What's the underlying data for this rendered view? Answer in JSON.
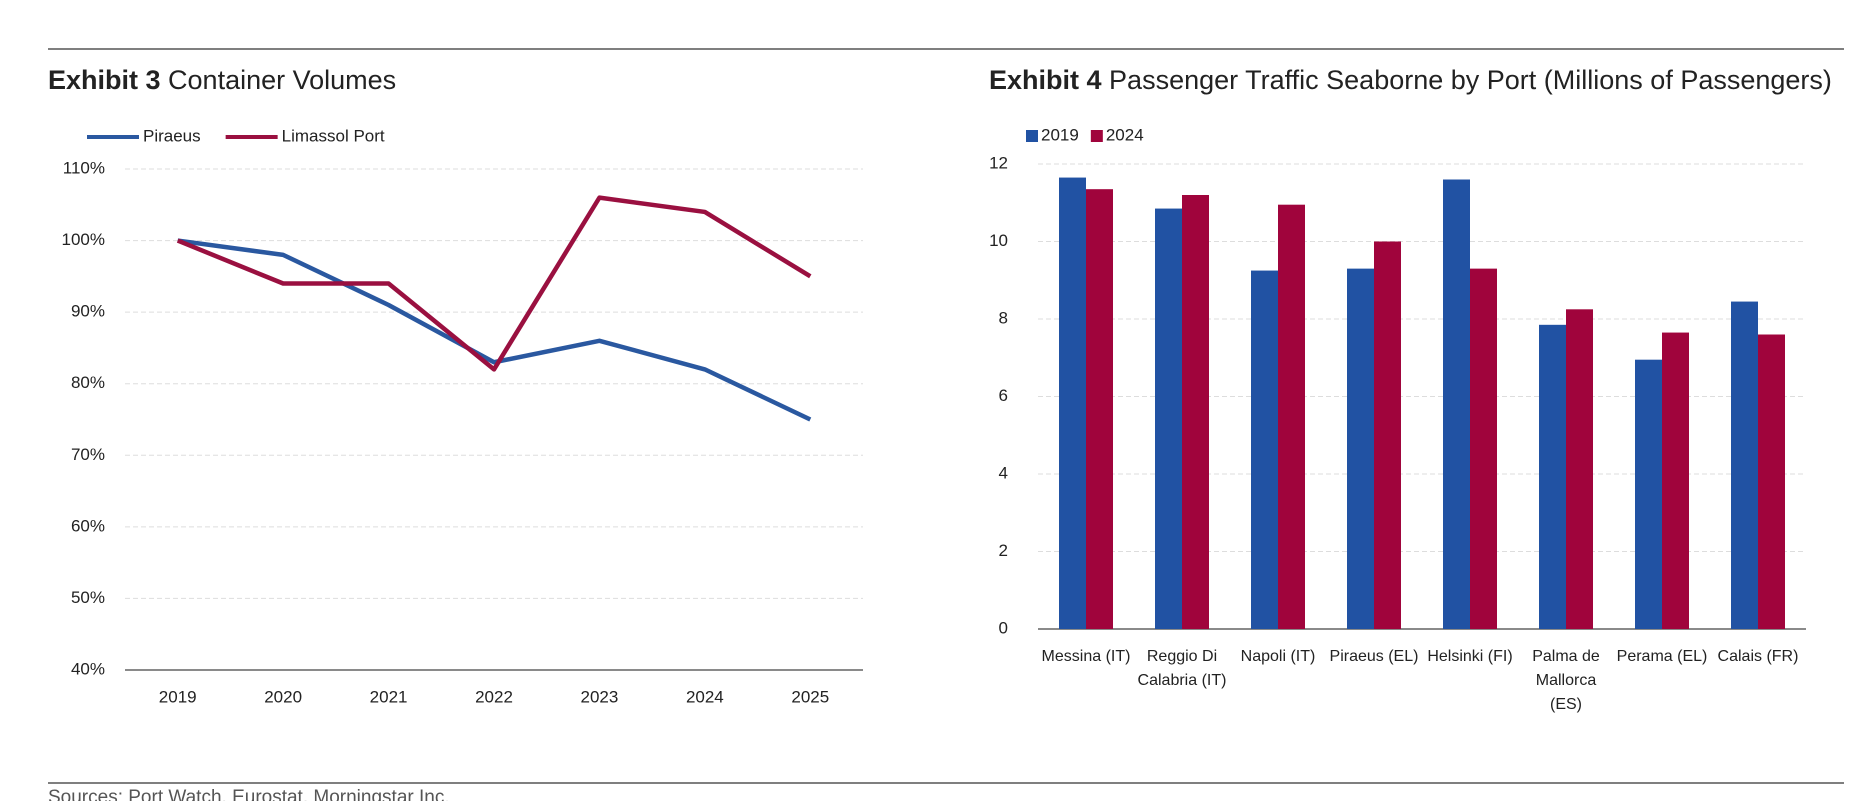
{
  "chart_data": [
    {
      "type": "line",
      "exhibit": "Exhibit 3",
      "title": "Container Volumes",
      "categories": [
        "2019",
        "2020",
        "2021",
        "2022",
        "2023",
        "2024",
        "2025"
      ],
      "series": [
        {
          "name": "Piraeus",
          "color": "#2a58a0",
          "values": [
            100,
            98,
            91,
            83,
            86,
            82,
            75
          ]
        },
        {
          "name": "Limassol Port",
          "color": "#9a1040",
          "values": [
            100,
            94,
            94,
            82,
            106,
            104,
            95
          ]
        }
      ],
      "ylim": [
        40,
        110
      ],
      "yticks": [
        {
          "value": 40,
          "label": "40%"
        },
        {
          "value": 50,
          "label": "50%"
        },
        {
          "value": 60,
          "label": "60%"
        },
        {
          "value": 70,
          "label": "70%"
        },
        {
          "value": 80,
          "label": "80%"
        },
        {
          "value": 90,
          "label": "90%"
        },
        {
          "value": 100,
          "label": "100%"
        },
        {
          "value": 110,
          "label": "110%"
        }
      ],
      "grid": true,
      "legend": "top-left"
    },
    {
      "type": "bar",
      "exhibit": "Exhibit 4",
      "title": "Passenger Traffic Seaborne by Port (Millions of Passengers)",
      "categories": [
        "Messina (IT)",
        "Reggio Di Calabria (IT)",
        "Napoli (IT)",
        "Piraeus (EL)",
        "Helsinki (FI)",
        "Palma de Mallorca (ES)",
        "Perama (EL)",
        "Calais (FR)"
      ],
      "series": [
        {
          "name": "2019",
          "color": "#2152a3",
          "values": [
            11.65,
            10.85,
            9.25,
            9.3,
            11.6,
            7.85,
            6.95,
            8.45
          ]
        },
        {
          "name": "2024",
          "color": "#a0043c",
          "values": [
            11.35,
            11.2,
            10.95,
            10.0,
            9.3,
            8.25,
            7.65,
            7.6
          ]
        }
      ],
      "ylim": [
        0,
        12
      ],
      "yticks": [
        0,
        2,
        4,
        6,
        8,
        10,
        12
      ],
      "grid": true,
      "legend": "top-left"
    }
  ],
  "source": "Sources: Port Watch, Eurostat, Morningstar Inc."
}
